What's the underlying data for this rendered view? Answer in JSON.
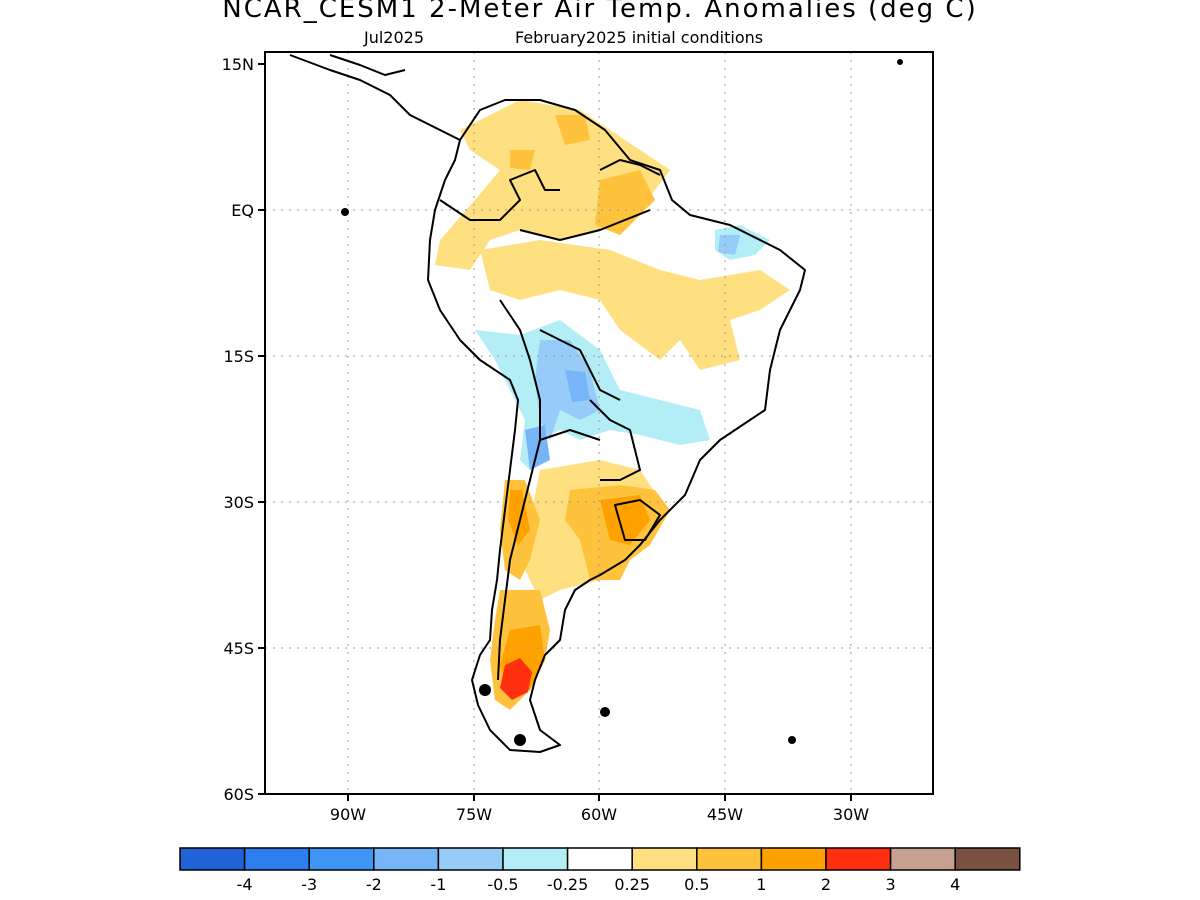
{
  "title": "NCAR_CESM1 2-Meter Air Temp. Anomalies (deg C)",
  "subtitle_left": "Jul2025",
  "subtitle_right": "February2025 initial conditions",
  "lat_labels": [
    "15N",
    "EQ",
    "15S",
    "30S",
    "45S",
    "60S"
  ],
  "lon_labels": [
    "90W",
    "75W",
    "60W",
    "45W",
    "30W"
  ],
  "legend": {
    "colors": [
      "#1f63d6",
      "#2d7ff0",
      "#3f95f5",
      "#76b5f7",
      "#98ccf8",
      "#b3eef6",
      "#ffffff",
      "#ffe080",
      "#ffc23c",
      "#ffa200",
      "#ff3010",
      "#c8a090",
      "#7a5040"
    ],
    "labels": [
      "-4",
      "-3",
      "-2",
      "-1",
      "-0.5",
      "-0.25",
      "0.25",
      "0.5",
      "1",
      "2",
      "3",
      "4"
    ]
  }
}
